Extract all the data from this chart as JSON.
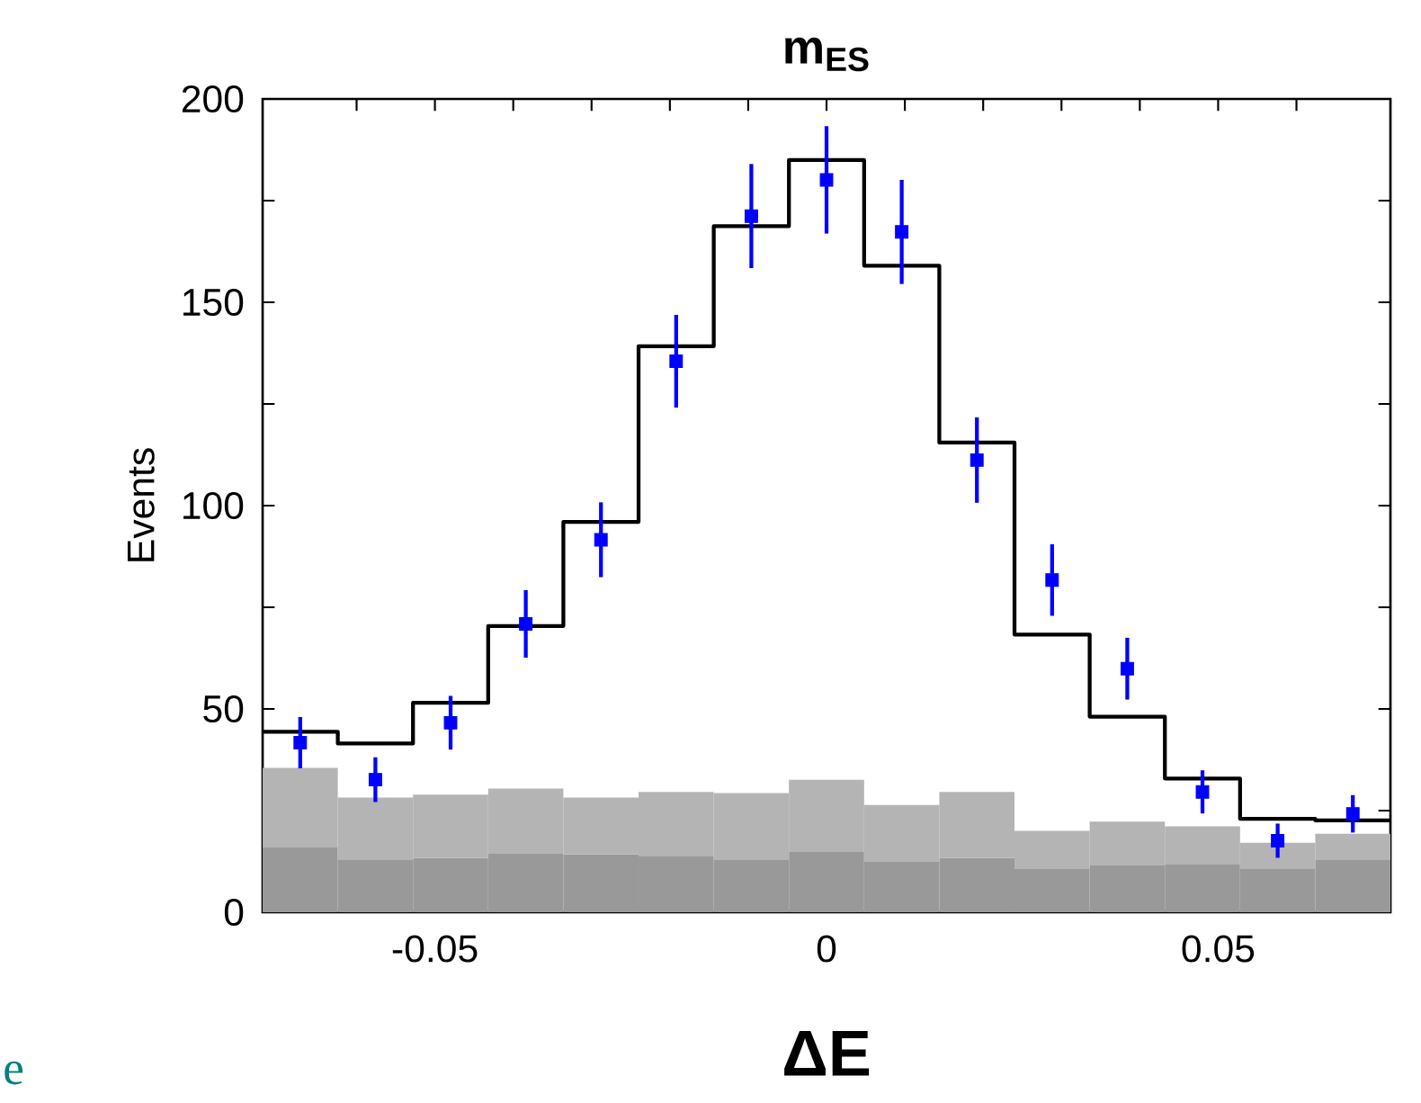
{
  "chart_data": {
    "type": "bar",
    "title": "m$_{ES}$",
    "xlabel": "ΔE",
    "ylabel": "Events",
    "annotations": [
      "e"
    ],
    "x": [
      -0.0672,
      -0.0576,
      -0.048,
      -0.0384,
      -0.0288,
      -0.0192,
      -0.0096,
      0,
      0.0096,
      0.0192,
      0.0288,
      0.0384,
      0.048,
      0.0576,
      0.0672
    ],
    "stacked": true,
    "series": [
      {
        "color": "#999999",
        "values": [
          15.9,
          12.8,
          13.3,
          14.4,
          14.2,
          13.9,
          12.8,
          15.0,
          12.4,
          13.3,
          10.6,
          11.5,
          11.9,
          10.8,
          12.8
        ]
      },
      {
        "color": "#b4b4b4",
        "values": [
          19.6,
          15.4,
          15.6,
          16.0,
          14.0,
          15.7,
          16.5,
          17.6,
          14.0,
          16.3,
          9.4,
          10.8,
          9.2,
          6.3,
          6.5
        ]
      },
      {
        "type": "step",
        "color": "#000000",
        "x": [
          -0.072,
          -0.0624,
          -0.0528,
          -0.0432,
          -0.0336,
          -0.024,
          -0.0144,
          -0.0048,
          0.0048,
          0.0144,
          0.024,
          0.0336,
          0.0432,
          0.0528,
          0.0624,
          0.072
        ],
        "values": [
          44.4,
          41.5,
          51.5,
          70.4,
          96.0,
          139.2,
          168.7,
          185.0,
          159.0,
          115.5,
          68.3,
          48.1,
          32.9,
          23.0,
          22.6,
          22.6
        ]
      },
      {
        "type": "scatter",
        "color": "#0000ff",
        "marker": "square",
        "x": [
          -0.0672,
          -0.0576,
          -0.048,
          -0.0384,
          -0.0288,
          -0.0192,
          -0.0096,
          0,
          0.0096,
          0.0192,
          0.0288,
          0.0384,
          0.048,
          0.0576,
          0.0672
        ],
        "values": [
          41.7,
          32.6,
          46.6,
          70.9,
          91.6,
          135.5,
          171.2,
          180.1,
          167.3,
          111.2,
          81.7,
          59.9,
          29.6,
          17.6,
          24.2
        ],
        "errors": [
          6.3,
          5.5,
          6.6,
          8.3,
          9.2,
          11.4,
          12.8,
          13.2,
          12.8,
          10.5,
          8.8,
          7.6,
          5.3,
          4.2,
          4.6
        ]
      }
    ],
    "xlim": [
      -0.072,
      0.072
    ],
    "ylim": [
      0,
      200
    ],
    "xticks": [
      {
        "value": -0.06,
        "label": null
      },
      -0.05,
      {
        "value": -0.04,
        "label": null
      },
      {
        "value": -0.03,
        "label": null
      },
      {
        "value": -0.02,
        "label": null
      },
      {
        "value": -0.01,
        "label": null
      },
      0,
      {
        "value": 0.01,
        "label": null
      },
      {
        "value": 0.02,
        "label": null
      },
      {
        "value": 0.03,
        "label": null
      },
      {
        "value": 0.04,
        "label": null
      },
      0.05,
      {
        "value": 0.06,
        "label": null
      }
    ],
    "yticks": [
      0,
      {
        "value": 25,
        "label": null
      },
      50,
      {
        "value": 75,
        "label": null
      },
      100,
      {
        "value": 125,
        "label": null
      },
      150,
      {
        "value": 175,
        "label": null
      },
      200
    ]
  }
}
